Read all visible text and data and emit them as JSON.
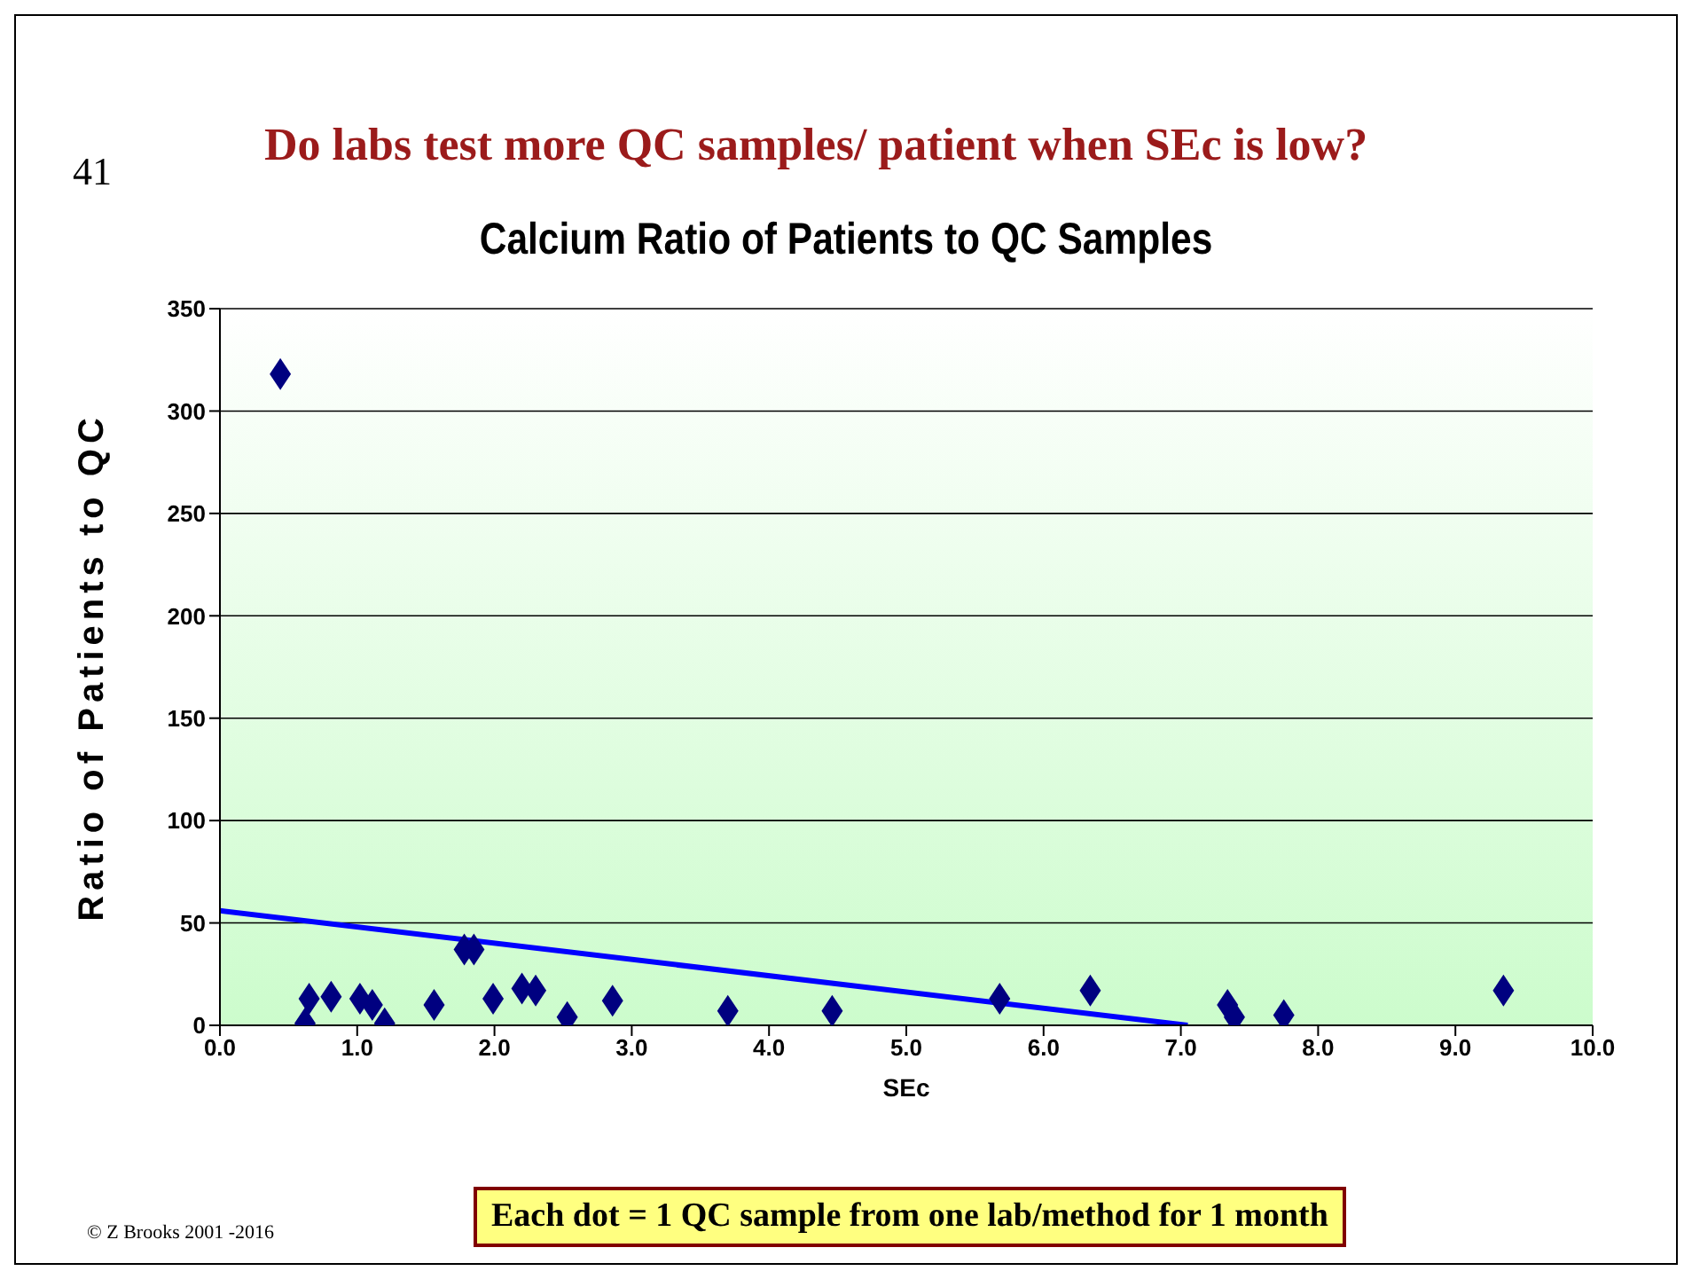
{
  "chart_data": {
    "type": "scatter",
    "title": "Calcium Ratio of Patients to QC Samples",
    "subtitle": "Do labs test more QC samples/ patient when SEc is low?",
    "xlabel": "SEc",
    "ylabel": "Ratio of Patients to QC",
    "annotations": [
      "41",
      "© Z Brooks 2001 -2016",
      "Each dot = 1 QC sample from one lab/method for 1 month"
    ],
    "series": [
      {
        "color": "#000080",
        "x": [
          0.44,
          0.62,
          0.65,
          0.81,
          1.02,
          1.11,
          1.2,
          1.56,
          1.78,
          1.85,
          1.99,
          2.2,
          2.3,
          2.53,
          2.86,
          3.7,
          4.46,
          5.68,
          6.34,
          7.34,
          7.39,
          7.75,
          9.35
        ],
        "values": [
          318,
          1,
          13,
          14,
          13,
          10,
          1,
          10,
          37,
          37,
          13,
          18,
          17,
          4,
          12,
          7,
          7,
          13,
          17,
          10,
          4,
          5,
          17
        ]
      },
      {
        "type": "line",
        "marker": "none",
        "color": "#0000ff",
        "x": [
          0,
          7.05
        ],
        "values": [
          56,
          0
        ]
      }
    ],
    "xlim": [
      0,
      10
    ],
    "xticks": [
      {
        "value": 0,
        "label": "0.0"
      },
      {
        "value": 1,
        "label": "1.0"
      },
      {
        "value": 2,
        "label": "2.0"
      },
      {
        "value": 3,
        "label": "3.0"
      },
      {
        "value": 4,
        "label": "4.0"
      },
      {
        "value": 5,
        "label": "5.0"
      },
      {
        "value": 6,
        "label": "6.0"
      },
      {
        "value": 7,
        "label": "7.0"
      },
      {
        "value": 8,
        "label": "8.0"
      },
      {
        "value": 9,
        "label": "9.0"
      },
      {
        "value": 10,
        "label": "10.0"
      }
    ],
    "ylim": [
      0,
      350
    ],
    "yticks": [
      0,
      50,
      100,
      150,
      200,
      250,
      300,
      350
    ],
    "grid": "y",
    "legend": false,
    "marker": "diamond"
  }
}
